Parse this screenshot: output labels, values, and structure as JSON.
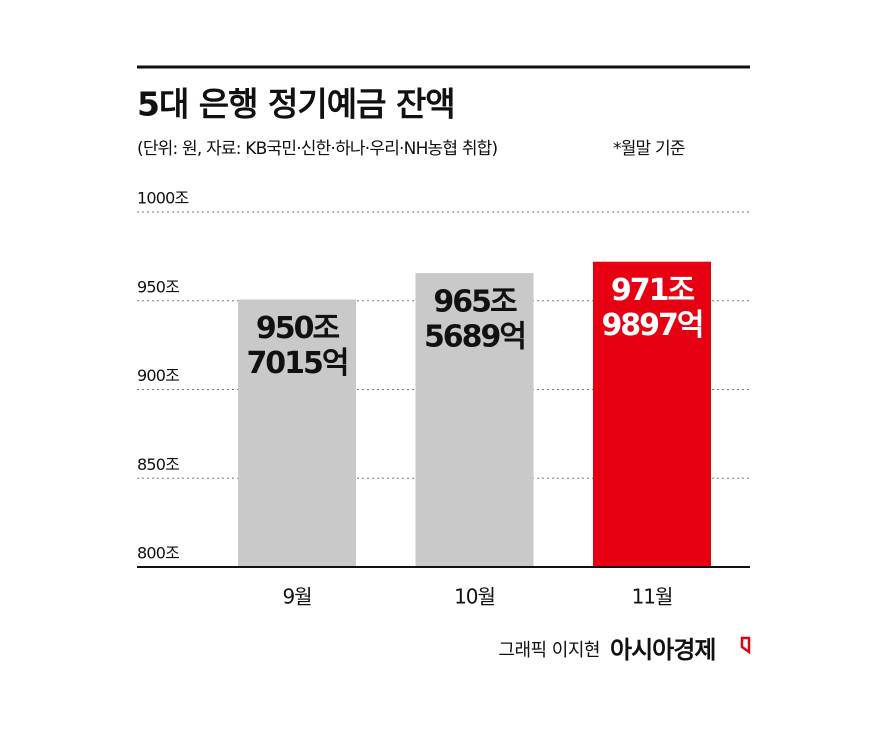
{
  "chart_data": {
    "type": "bar",
    "title": "5대 은행 정기예금 잔액",
    "subtitle": "(단위: 원, 자료: KB국민·신한·하나·우리·NH농협 취합)",
    "note": "*월말 기준",
    "categories": [
      "9월",
      "10월",
      "11월"
    ],
    "values": [
      950.7015,
      965.5689,
      971.9897
    ],
    "value_labels": [
      [
        "950조",
        "7015억"
      ],
      [
        "965조",
        "5689억"
      ],
      [
        "971조",
        "9897억"
      ]
    ],
    "colors": [
      "#c9c9c9",
      "#c9c9c9",
      "#e60012"
    ],
    "value_label_colors": [
      "#111111",
      "#111111",
      "#ffffff"
    ],
    "ylim": [
      800,
      1000
    ],
    "yticks": [
      {
        "value": 800,
        "label": "800조"
      },
      {
        "value": 850,
        "label": "850조"
      },
      {
        "value": 900,
        "label": "900조"
      },
      {
        "value": 950,
        "label": "950조"
      },
      {
        "value": 1000,
        "label": "1000조"
      }
    ],
    "grid": true,
    "credit": "그래픽 이지현",
    "publisher": "아시아경제"
  }
}
